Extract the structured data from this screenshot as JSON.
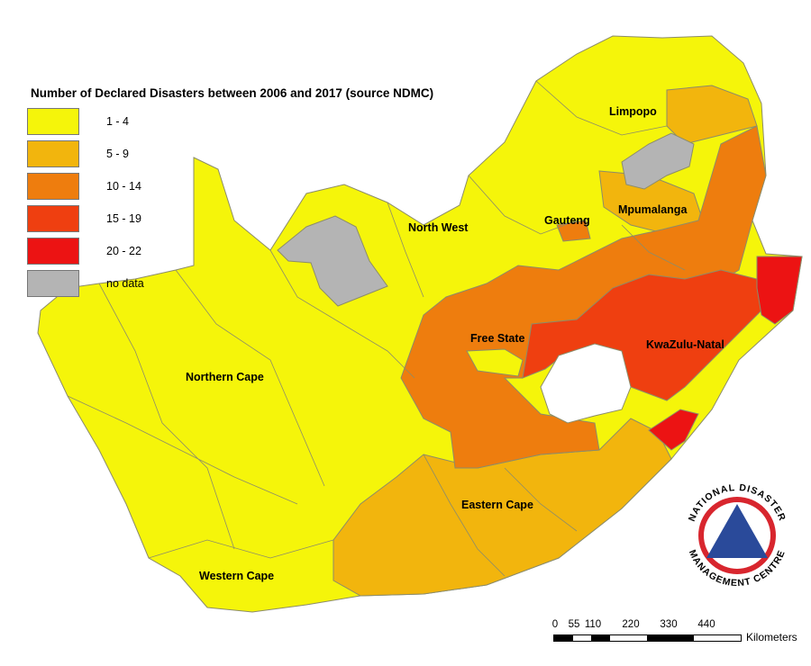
{
  "legend": {
    "title": "Number of Declared Disasters between 2006 and 2017 (source NDMC)",
    "items": [
      {
        "label": "1 - 4",
        "color": "#f5f50a"
      },
      {
        "label": "5 - 9",
        "color": "#f2b50d"
      },
      {
        "label": "10 - 14",
        "color": "#ee7d0e"
      },
      {
        "label": "15 - 19",
        "color": "#ef3f10"
      },
      {
        "label": "20 - 22",
        "color": "#ec1313"
      },
      {
        "label": "no data",
        "color": "#b4b4b4"
      }
    ]
  },
  "provinces": {
    "limpopo": "Limpopo",
    "north_west": "North West",
    "gauteng": "Gauteng",
    "mpumalanga": "Mpumalanga",
    "free_state": "Free State",
    "kwazulu_natal": "KwaZulu-Natal",
    "northern_cape": "Northern Cape",
    "eastern_cape": "Eastern Cape",
    "western_cape": "Western Cape"
  },
  "scale_bar": {
    "ticks": [
      "0",
      "55",
      "110",
      "220",
      "330",
      "440"
    ],
    "unit": "Kilometers"
  },
  "logo": {
    "text_top": "NATIONAL DISASTER",
    "text_bottom": "MANAGEMENT CENTRE",
    "ring_color": "#d8262e",
    "triangle_color": "#2a4a9a"
  },
  "colors": {
    "boundary": "#8c8c6a",
    "lesotho": "#ffffff"
  }
}
